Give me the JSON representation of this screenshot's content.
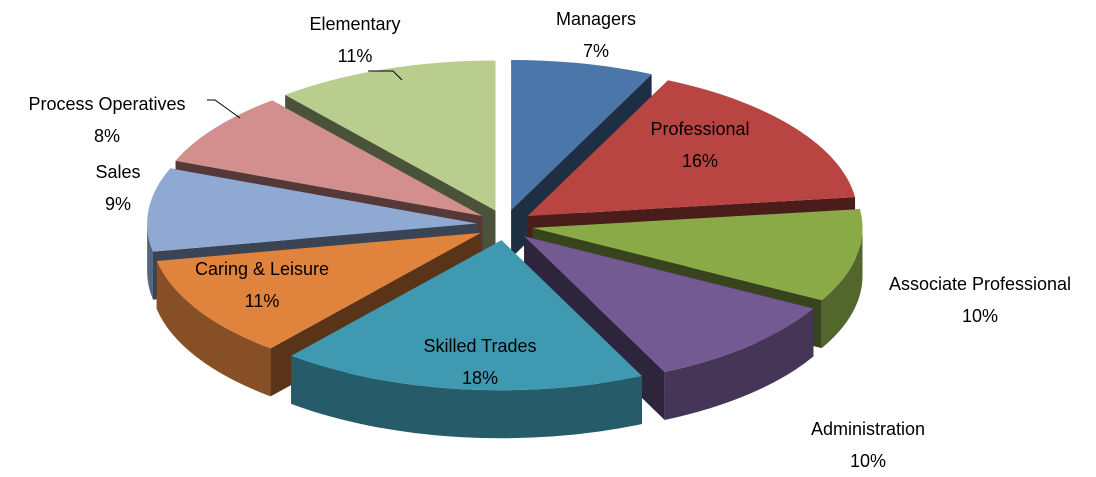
{
  "chart_data": {
    "type": "pie",
    "categories": [
      "Managers",
      "Professional",
      "Associate Professional",
      "Administration",
      "Skilled Trades",
      "Caring & Leisure",
      "Sales",
      "Process Operatives",
      "Elementary"
    ],
    "values": [
      7,
      16,
      10,
      10,
      18,
      11,
      9,
      8,
      11
    ],
    "value_labels": [
      "7%",
      "16%",
      "10%",
      "10%",
      "18%",
      "11%",
      "9%",
      "8%",
      "11%"
    ],
    "colors": [
      "#4a76aa",
      "#b94542",
      "#8aaa48",
      "#735a93",
      "#3f9ab1",
      "#e0833d",
      "#8fa9d2",
      "#d28f8d",
      "#b9cd8f"
    ]
  }
}
